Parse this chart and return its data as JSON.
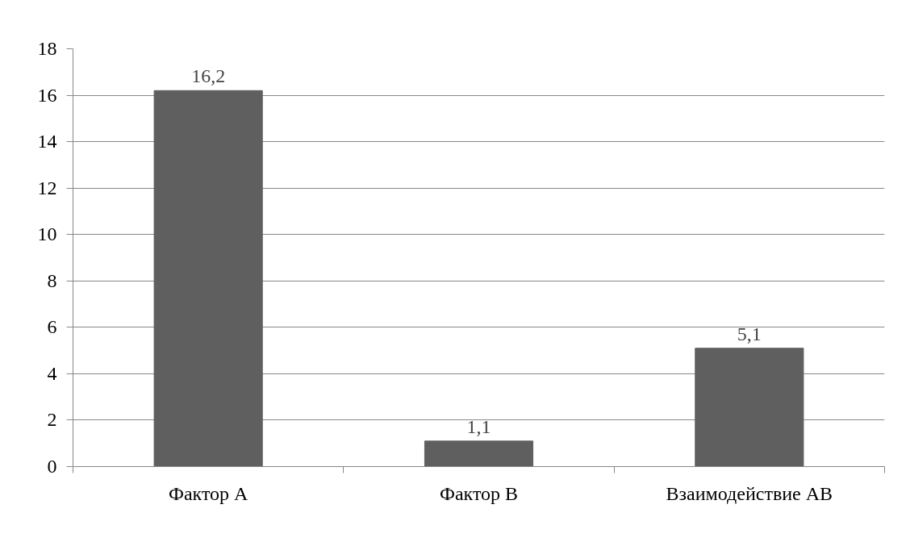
{
  "chart_data": {
    "type": "bar",
    "categories": [
      "Фактор А",
      "Фактор В",
      "Взаимодействие АВ"
    ],
    "values": [
      16.2,
      1.1,
      5.1
    ],
    "value_labels": [
      "16,2",
      "1,1",
      "5,1"
    ],
    "color": "#5f5f5f",
    "ylim": [
      0,
      18
    ],
    "yticks": [
      0,
      2,
      4,
      6,
      8,
      10,
      12,
      14,
      16,
      18
    ],
    "grid": "y"
  }
}
